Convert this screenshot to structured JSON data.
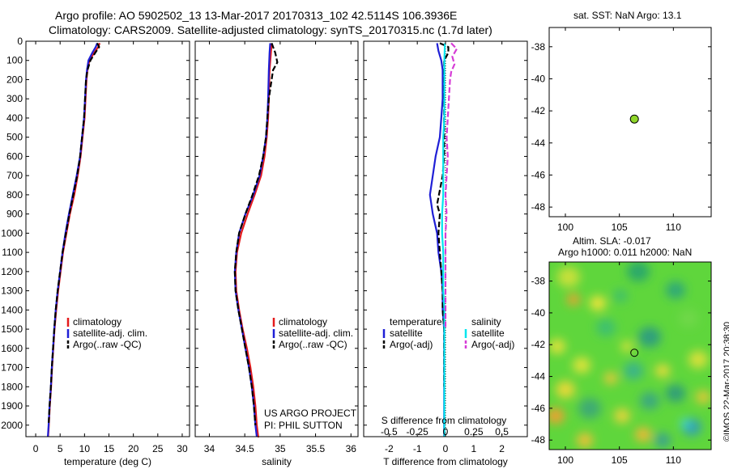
{
  "header": {
    "title_line1": "Argo profile: AO 5902502_13 13-Mar-2017 20170313_102 42.5114S 106.3936E",
    "title_line2": "Climatology: CARS2009. Satellite-adjusted climatology: synTS_20170315.nc (1.7d later)"
  },
  "colors": {
    "climatology": "#e41a1c",
    "satellite": "#1f1fd6",
    "argo": "#000000",
    "sal_satellite": "#00e5ee",
    "sal_argo": "#d63cd6",
    "marker": "#8fd62a"
  },
  "panels": {
    "temperature": {
      "xlabel": "temperature (deg C)",
      "legend": [
        "climatology",
        "satellite-adj. clim.",
        "Argo(..raw -QC)"
      ]
    },
    "salinity": {
      "xlabel": "salinity",
      "legend": [
        "climatology",
        "satellite-adj. clim.",
        "Argo(..raw -QC)"
      ],
      "note_line1": "US ARGO PROJECT",
      "note_line2": "PI: PHIL SUTTON"
    },
    "difference": {
      "xlabel": "T difference from climatology",
      "top_label": "S difference from climatology",
      "legend_t_title": "temperature",
      "legend_s_title": "salinity",
      "legend_t": [
        "satellite",
        "Argo(-adj)"
      ],
      "legend_s": [
        "satellite",
        "Argo(-adj)"
      ]
    },
    "sst_map": {
      "title": "sat. SST: NaN Argo: 13.1"
    },
    "sla_map": {
      "title_line1": "Altim. SLA: -0.017",
      "title_line2": "Argo h1000: 0.011 h2000: NaN"
    }
  },
  "credit": "©IMOS 22-Mar-2017 20:38:30",
  "chart_data": [
    {
      "type": "line",
      "panel": "temperature",
      "xlabel": "temperature (deg C)",
      "xlim": [
        -2,
        31.5
      ],
      "ylim": [
        2060,
        0
      ],
      "y_reversed": true,
      "xticks": [
        0,
        5,
        10,
        15,
        20,
        25,
        30
      ],
      "yticks": [
        0,
        100,
        200,
        300,
        400,
        500,
        600,
        700,
        800,
        900,
        1000,
        1100,
        1200,
        1300,
        1400,
        1500,
        1600,
        1700,
        1800,
        1900,
        2000
      ],
      "series": [
        {
          "name": "climatology",
          "color": "#e41a1c",
          "dash": false,
          "x": [
            13.1,
            12.8,
            12.0,
            11.0,
            10.6,
            10.4,
            10.2,
            10.0,
            9.6,
            9.2,
            8.6,
            7.9,
            7.0,
            6.3,
            5.6,
            5.1,
            4.6,
            4.2,
            3.85,
            3.6,
            3.35,
            3.15,
            2.9,
            2.7,
            2.55
          ],
          "y": [
            10,
            30,
            60,
            100,
            150,
            200,
            300,
            400,
            500,
            600,
            700,
            800,
            900,
            1000,
            1100,
            1200,
            1300,
            1400,
            1500,
            1600,
            1700,
            1800,
            1900,
            2000,
            2060
          ]
        },
        {
          "name": "satellite-adj. clim.",
          "color": "#1f1fd6",
          "dash": false,
          "x": [
            12.6,
            12.3,
            11.6,
            10.8,
            10.5,
            10.3,
            10.1,
            9.9,
            9.5,
            9.1,
            8.4,
            7.6,
            6.8,
            6.1,
            5.5,
            5.0,
            4.5,
            4.1,
            3.8,
            3.55,
            3.3,
            3.1,
            2.85,
            2.65,
            2.5
          ],
          "y": [
            10,
            30,
            60,
            100,
            150,
            200,
            300,
            400,
            500,
            600,
            700,
            800,
            900,
            1000,
            1100,
            1200,
            1300,
            1400,
            1500,
            1600,
            1700,
            1800,
            1900,
            2000,
            2060
          ]
        },
        {
          "name": "Argo(..raw -QC)",
          "color": "#000000",
          "dash": true,
          "x": [
            12.6,
            13.0,
            12.2,
            11.2,
            10.6,
            10.3,
            10.1,
            9.9,
            9.5,
            9.1,
            8.5,
            7.7,
            6.9,
            6.2,
            5.5,
            5.0,
            4.5,
            4.1,
            3.8,
            3.55,
            3.3,
            3.1,
            2.85,
            2.65
          ],
          "y": [
            10,
            30,
            60,
            100,
            150,
            200,
            300,
            400,
            500,
            600,
            700,
            800,
            900,
            1000,
            1100,
            1200,
            1300,
            1400,
            1500,
            1600,
            1700,
            1800,
            1900,
            2000
          ]
        }
      ]
    },
    {
      "type": "line",
      "panel": "salinity",
      "xlabel": "salinity",
      "xlim": [
        33.8,
        36.1
      ],
      "ylim": [
        2060,
        0
      ],
      "y_reversed": true,
      "xticks": [
        34,
        34.5,
        35,
        35.5,
        36
      ],
      "series": [
        {
          "name": "climatology",
          "color": "#e41a1c",
          "dash": false,
          "x": [
            34.88,
            34.87,
            34.85,
            34.84,
            34.83,
            34.81,
            34.78,
            34.73,
            34.64,
            34.54,
            34.45,
            34.39,
            34.37,
            34.38,
            34.42,
            34.47,
            34.53,
            34.58,
            34.62,
            34.65,
            34.67,
            34.69,
            34.7
          ],
          "y": [
            10,
            60,
            150,
            300,
            400,
            500,
            600,
            700,
            800,
            900,
            1000,
            1100,
            1200,
            1300,
            1400,
            1500,
            1600,
            1700,
            1800,
            1900,
            2000,
            2060,
            2060
          ]
        },
        {
          "name": "satellite-adj. clim.",
          "color": "#1f1fd6",
          "dash": false,
          "x": [
            34.86,
            34.85,
            34.84,
            34.83,
            34.82,
            34.8,
            34.76,
            34.71,
            34.62,
            34.51,
            34.42,
            34.38,
            34.36,
            34.37,
            34.41,
            34.46,
            34.51,
            34.56,
            34.6,
            34.63,
            34.65,
            34.67
          ],
          "y": [
            10,
            60,
            150,
            300,
            400,
            500,
            600,
            700,
            800,
            900,
            1000,
            1100,
            1200,
            1300,
            1400,
            1500,
            1600,
            1700,
            1800,
            1900,
            2000,
            2060
          ]
        },
        {
          "name": "Argo(..raw -QC)",
          "color": "#000000",
          "dash": true,
          "x": [
            34.88,
            34.93,
            34.96,
            34.9,
            34.86,
            34.84,
            34.82,
            34.8,
            34.76,
            34.7,
            34.61,
            34.51,
            34.42,
            34.38,
            34.36,
            34.37,
            34.41,
            34.46,
            34.51,
            34.56,
            34.6,
            34.63,
            34.65
          ],
          "y": [
            10,
            60,
            110,
            150,
            250,
            300,
            400,
            500,
            600,
            700,
            800,
            900,
            1000,
            1100,
            1200,
            1300,
            1400,
            1500,
            1600,
            1700,
            1800,
            1900,
            2000
          ]
        }
      ]
    },
    {
      "type": "line",
      "panel": "difference",
      "xlabel": "T difference from climatology",
      "xlim": [
        -2.9,
        2.9
      ],
      "ylim": [
        2060,
        0
      ],
      "y_reversed": true,
      "xticks": [
        -2,
        -1,
        0,
        1,
        2
      ],
      "s_axis_label": "S difference from climatology",
      "s_ticks": [
        -0.5,
        -0.25,
        0,
        0.25,
        0.5
      ],
      "s_scale": 4,
      "series": [
        {
          "name": "satellite (T)",
          "color": "#1f1fd6",
          "dash": false,
          "var": "T",
          "x": [
            -0.3,
            -0.25,
            -0.15,
            -0.1,
            -0.1,
            -0.1,
            -0.15,
            -0.2,
            -0.35,
            -0.45,
            -0.55,
            -0.45,
            -0.3,
            -0.25,
            -0.15,
            -0.1,
            -0.1,
            -0.05,
            -0.05,
            -0.05,
            -0.05,
            -0.05
          ],
          "y": [
            10,
            50,
            100,
            150,
            200,
            300,
            400,
            500,
            600,
            700,
            800,
            900,
            1000,
            1100,
            1200,
            1300,
            1400,
            1500,
            1600,
            1800,
            2000,
            2060
          ]
        },
        {
          "name": "Argo(-adj) (T)",
          "color": "#000000",
          "dash": true,
          "var": "T",
          "x": [
            -0.2,
            0.1,
            0.1,
            -0.05,
            -0.05,
            -0.05,
            -0.05,
            -0.05,
            -0.05,
            -0.1,
            -0.3,
            -0.2,
            -0.25,
            -0.2,
            -0.15,
            -0.1,
            -0.1,
            -0.05,
            -0.05,
            -0.05
          ],
          "y": [
            10,
            30,
            60,
            100,
            200,
            300,
            400,
            500,
            600,
            700,
            850,
            900,
            1000,
            1100,
            1200,
            1300,
            1400,
            1500,
            1600,
            1800
          ]
        },
        {
          "name": "satellite (S)",
          "color": "#00e5ee",
          "dash": false,
          "var": "S",
          "x": [
            -0.005,
            -0.01,
            -0.01,
            -0.01,
            -0.01,
            -0.02,
            -0.02,
            -0.02,
            -0.02,
            -0.03,
            -0.03,
            -0.02,
            -0.02,
            -0.02,
            -0.01,
            -0.01,
            -0.01,
            -0.01
          ],
          "y": [
            10,
            100,
            200,
            300,
            400,
            500,
            600,
            700,
            800,
            900,
            1000,
            1100,
            1200,
            1300,
            1400,
            1600,
            1800,
            2060
          ]
        },
        {
          "name": "Argo(-adj) (S)",
          "color": "#d63cd6",
          "dash": true,
          "var": "S",
          "x": [
            0.05,
            0.1,
            0.06,
            0.08,
            0.05,
            0.04,
            0.03,
            0.02,
            0.01,
            0.02,
            0.01,
            0.0,
            0.01,
            0.0,
            0.0,
            0.0,
            0.0,
            0.0
          ],
          "y": [
            10,
            40,
            80,
            120,
            160,
            200,
            300,
            400,
            500,
            600,
            700,
            800,
            900,
            1000,
            1100,
            1200,
            1400,
            1500
          ]
        }
      ]
    },
    {
      "type": "scatter",
      "panel": "sst_map",
      "title": "sat. SST: NaN Argo: 13.1",
      "xlim": [
        98.5,
        113.5
      ],
      "ylim": [
        -48.6,
        -36.8
      ],
      "xticks": [
        100,
        105,
        110
      ],
      "yticks": [
        -38,
        -40,
        -42,
        -44,
        -46,
        -48
      ],
      "points": [
        {
          "x": 106.39,
          "y": -42.51
        }
      ]
    },
    {
      "type": "heatmap",
      "panel": "sla_map",
      "title": "Altim. SLA: -0.017",
      "xlim": [
        98.5,
        113.5
      ],
      "ylim": [
        -48.6,
        -36.8
      ],
      "xticks": [
        100,
        105,
        110
      ],
      "yticks": [
        -38,
        -40,
        -42,
        -44,
        -46,
        -48
      ],
      "points": [
        {
          "x": 106.39,
          "y": -42.51
        }
      ]
    }
  ]
}
